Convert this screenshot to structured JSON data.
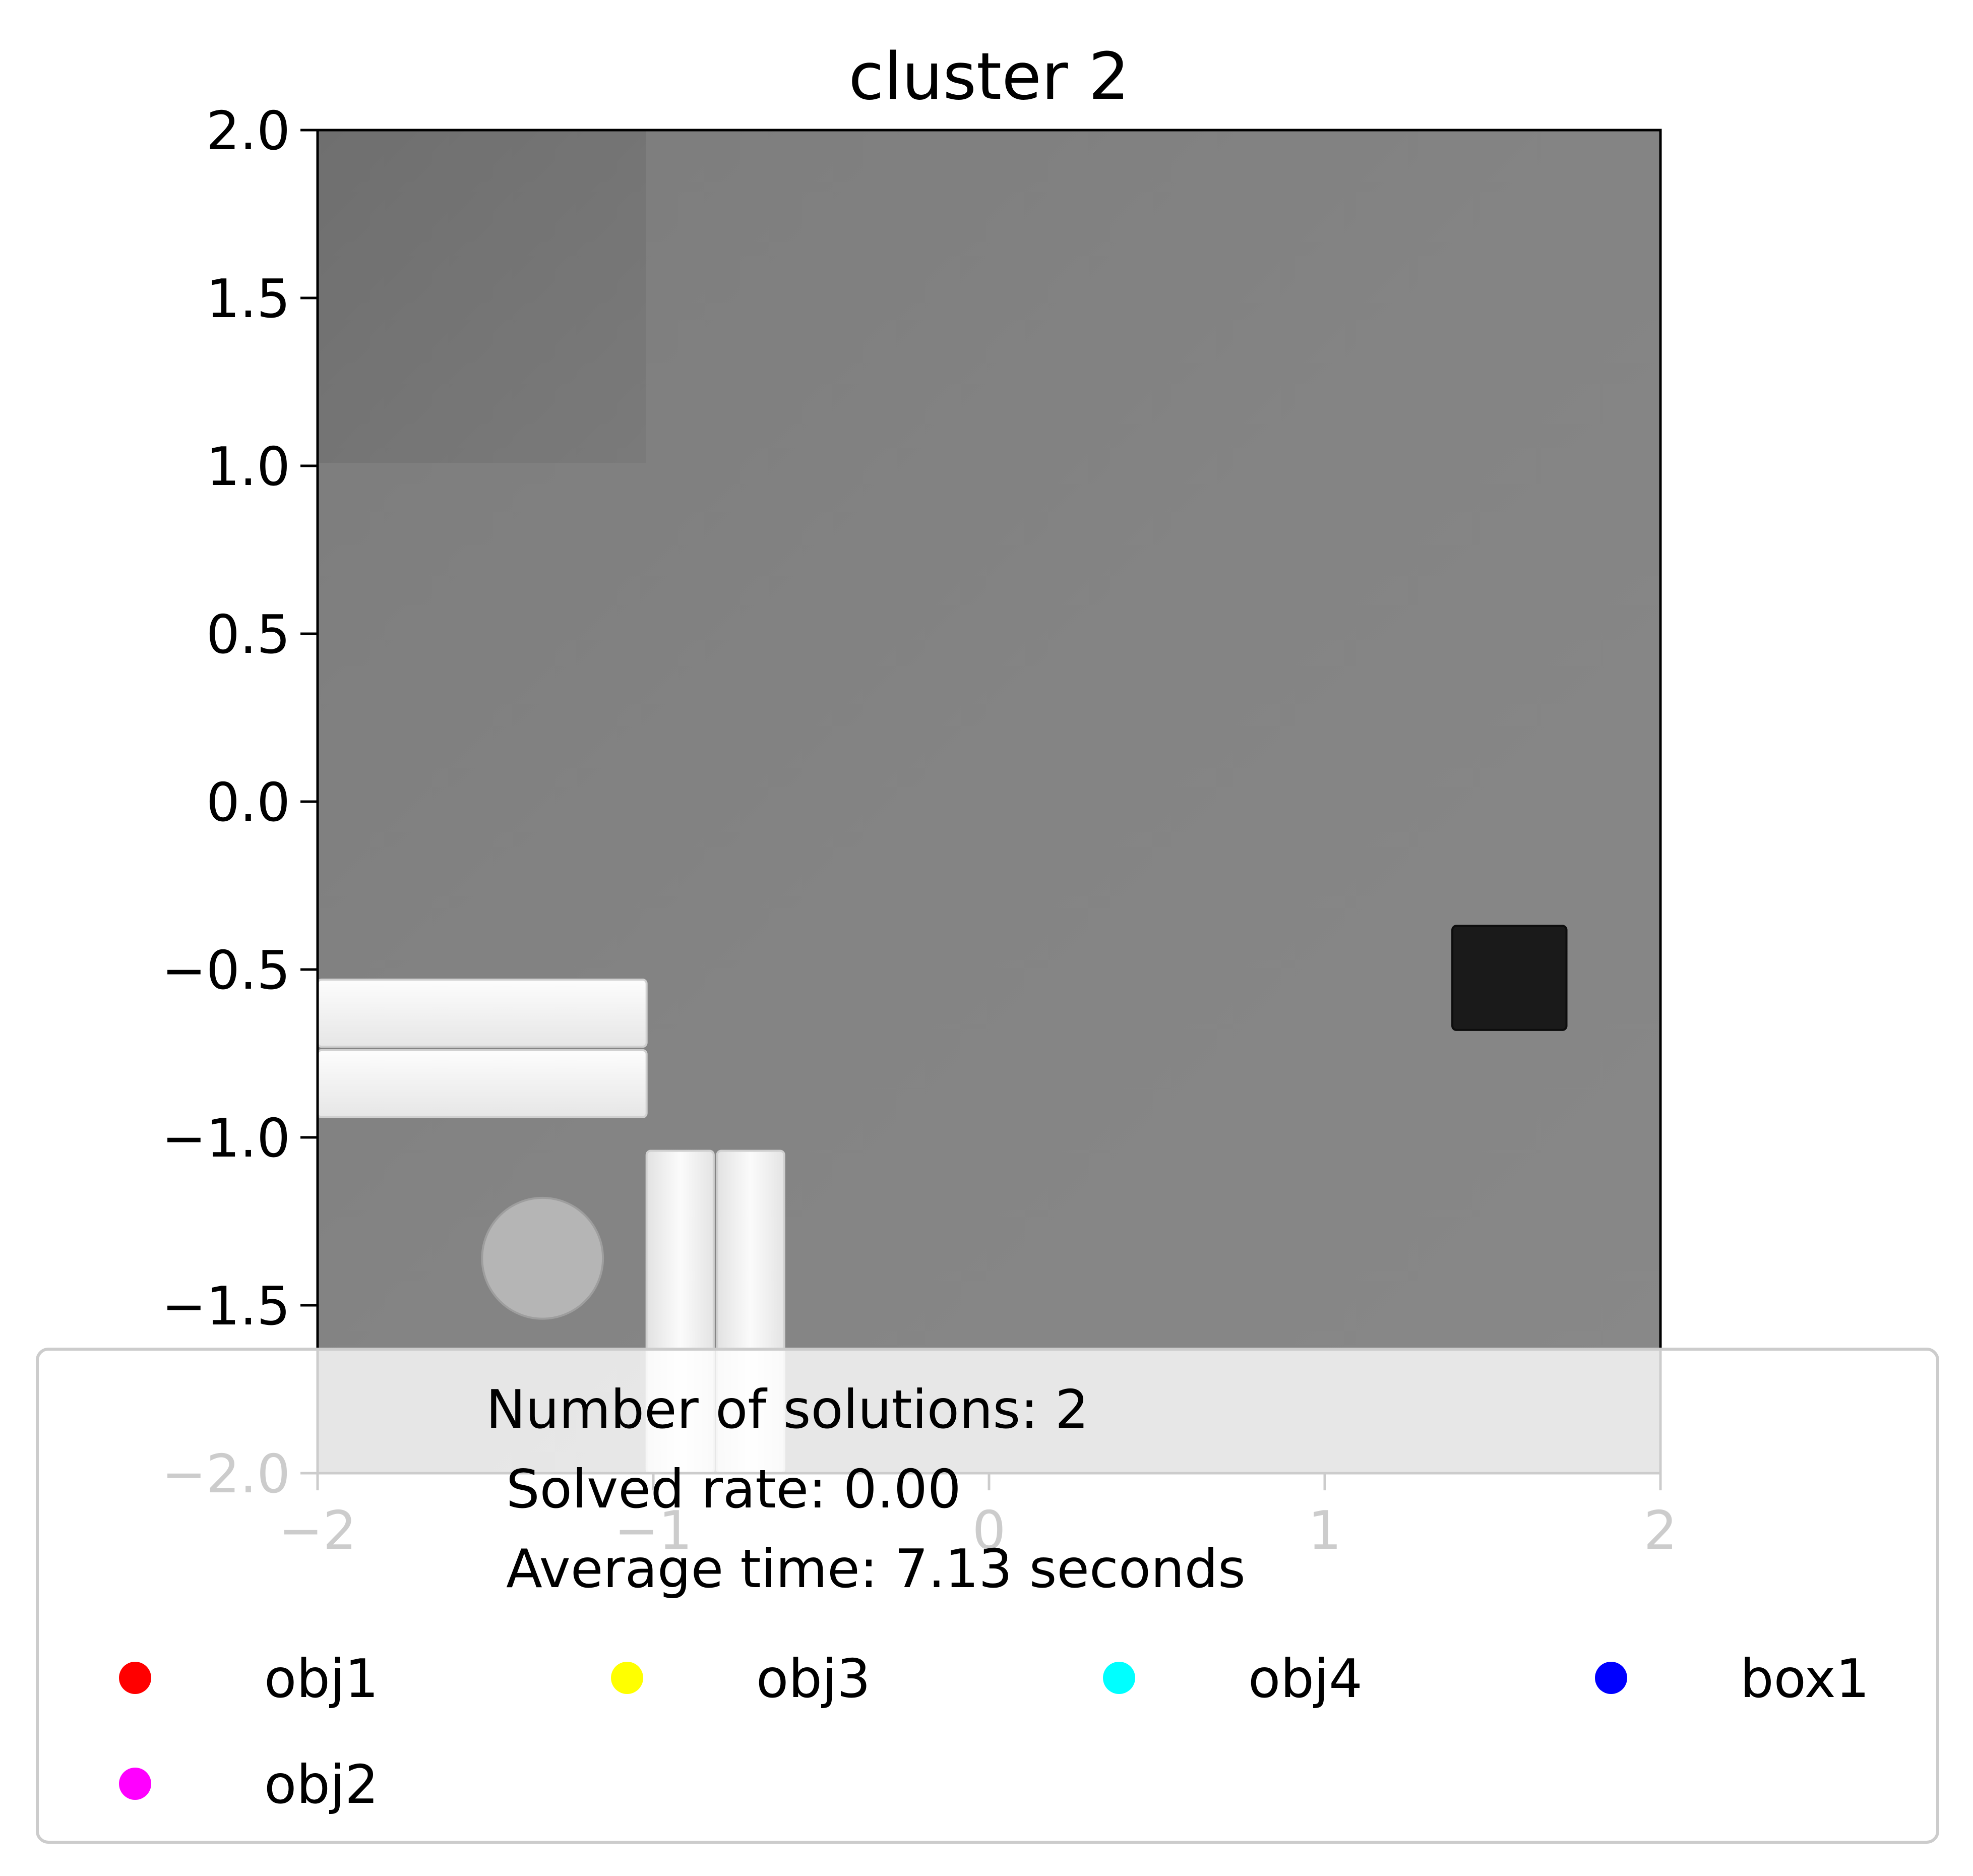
{
  "chart_data": {
    "type": "scatter",
    "title": "cluster 2",
    "xlabel": "",
    "ylabel": "",
    "xlim": [
      -2,
      2
    ],
    "ylim": [
      -2,
      2
    ],
    "xticks": [
      -2,
      -1,
      0,
      1,
      2
    ],
    "xtick_labels": [
      "−2",
      "−1",
      "0",
      "1",
      "2"
    ],
    "yticks": [
      2.0,
      1.5,
      1.0,
      0.5,
      0.0,
      -0.5,
      -1.0,
      -1.5,
      -2.0
    ],
    "ytick_labels": [
      "2.0",
      "1.5",
      "1.0",
      "0.5",
      "0.0",
      "−0.5",
      "−1.0",
      "−1.5",
      "−2.0"
    ],
    "grid": false,
    "background": "grayscale top-down scene image",
    "scene_objects": [
      {
        "name": "bar-horizontal-upper",
        "shape": "rect",
        "x": [
          -2.0,
          -1.02
        ],
        "y": [
          -0.73,
          -0.53
        ],
        "color": "#f4f4f4"
      },
      {
        "name": "bar-horizontal-lower",
        "shape": "rect",
        "x": [
          -2.0,
          -1.02
        ],
        "y": [
          -0.94,
          -0.74
        ],
        "color": "#eeeeee"
      },
      {
        "name": "bar-vertical-left",
        "shape": "rect",
        "x": [
          -1.02,
          -0.82
        ],
        "y": [
          -2.0,
          -1.04
        ],
        "color": "#f2f2f2"
      },
      {
        "name": "bar-vertical-right",
        "shape": "rect",
        "x": [
          -0.81,
          -0.61
        ],
        "y": [
          -2.0,
          -1.04
        ],
        "color": "#f2f2f2"
      },
      {
        "name": "cylinder",
        "shape": "circle",
        "cx": -1.33,
        "cy": -1.36,
        "r": 0.18,
        "color": "#b5b5b5"
      },
      {
        "name": "dark-box",
        "shape": "rect",
        "x": [
          1.38,
          1.72
        ],
        "y": [
          -0.68,
          -0.37
        ],
        "color": "#1a1a1a"
      }
    ],
    "series": [
      {
        "name": "obj1",
        "color": "#ff0000",
        "points": []
      },
      {
        "name": "obj3",
        "color": "#ffff00",
        "points": []
      },
      {
        "name": "obj4",
        "color": "#00ffff",
        "points": []
      },
      {
        "name": "box1",
        "color": "#0000ff",
        "points": []
      },
      {
        "name": "obj2",
        "color": "#ff00ff",
        "points": []
      }
    ],
    "legend": {
      "placement": "bottom",
      "title_lines": [
        "Number of solutions: 2",
        "Solved rate: 0.00",
        "Average time: 7.13 seconds"
      ],
      "columns": 4
    }
  }
}
